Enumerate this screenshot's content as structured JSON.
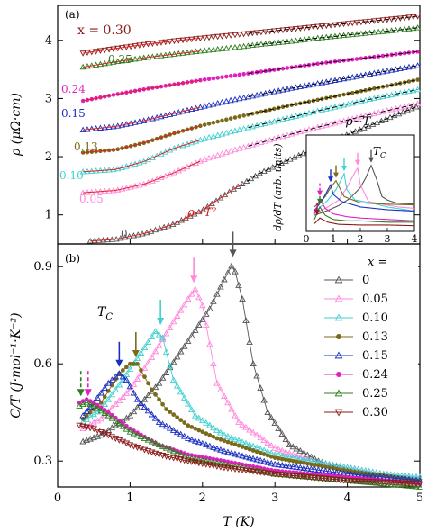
{
  "chart_data": [
    {
      "panel_label": "(a)",
      "type": "scatter",
      "ylabel": "ρ (μΩ·cm)",
      "xlabel": "T (K)",
      "xlim": [
        0,
        5
      ],
      "ylim": [
        0.5,
        4.6
      ],
      "yticks": [
        "1",
        "2",
        "3",
        "4"
      ],
      "grid": false,
      "series": [
        {
          "name": "0.30",
          "label_text": "x = 0.30",
          "color": "#8b1a1a",
          "marker": "triangle-down",
          "x": [
            0.35,
            0.8,
            1.2,
            1.6,
            2.0,
            2.4,
            2.8,
            3.2,
            3.6,
            4.0,
            4.4,
            4.8,
            5.0
          ],
          "y": [
            3.78,
            3.86,
            3.93,
            3.99,
            4.04,
            4.09,
            4.14,
            4.19,
            4.24,
            4.29,
            4.34,
            4.39,
            4.42
          ]
        },
        {
          "name": "0.25",
          "label_text": "0.25",
          "color": "#2e7d1e",
          "marker": "triangle-up",
          "x": [
            0.35,
            0.8,
            1.2,
            1.6,
            2.0,
            2.4,
            2.8,
            3.2,
            3.6,
            4.0,
            4.4,
            4.8,
            5.0
          ],
          "y": [
            3.54,
            3.63,
            3.7,
            3.76,
            3.82,
            3.87,
            3.93,
            3.98,
            4.04,
            4.09,
            4.14,
            4.19,
            4.22
          ]
        },
        {
          "name": "0.24",
          "label_text": "0.24",
          "color": "#e020c0",
          "marker": "circle-filled",
          "x": [
            0.35,
            0.8,
            1.2,
            1.6,
            2.0,
            2.4,
            2.8,
            3.2,
            3.6,
            4.0,
            4.4,
            4.8,
            5.0
          ],
          "y": [
            2.96,
            3.07,
            3.16,
            3.24,
            3.32,
            3.39,
            3.46,
            3.53,
            3.6,
            3.66,
            3.72,
            3.78,
            3.81
          ]
        },
        {
          "name": "0.15",
          "label_text": "0.15",
          "color": "#1a2fbf",
          "marker": "triangle-up",
          "x": [
            0.35,
            0.8,
            1.2,
            1.6,
            2.0,
            2.4,
            2.8,
            3.2,
            3.6,
            4.0,
            4.4,
            4.8,
            5.0
          ],
          "y": [
            2.46,
            2.52,
            2.62,
            2.74,
            2.86,
            2.97,
            3.07,
            3.17,
            3.26,
            3.35,
            3.44,
            3.53,
            3.57
          ]
        },
        {
          "name": "0.13",
          "label_text": "0.13",
          "color": "#7a6a1a",
          "marker": "circle-filled",
          "x": [
            0.35,
            0.8,
            1.2,
            1.6,
            2.0,
            2.4,
            2.8,
            3.2,
            3.6,
            4.0,
            4.4,
            4.8,
            5.0
          ],
          "y": [
            2.07,
            2.12,
            2.24,
            2.4,
            2.54,
            2.66,
            2.77,
            2.88,
            2.98,
            3.08,
            3.18,
            3.28,
            3.33
          ]
        },
        {
          "name": "0.10",
          "label_text": "0.10",
          "color": "#40d0d0",
          "marker": "triangle-up",
          "x": [
            0.35,
            0.8,
            1.2,
            1.6,
            2.0,
            2.4,
            2.8,
            3.2,
            3.6,
            4.0,
            4.4,
            4.8,
            5.0
          ],
          "y": [
            1.74,
            1.78,
            1.92,
            2.14,
            2.3,
            2.43,
            2.55,
            2.67,
            2.79,
            2.9,
            3.01,
            3.11,
            3.16
          ]
        },
        {
          "name": "0.05",
          "label_text": "0.05",
          "color": "#ff88dd",
          "marker": "triangle-up",
          "x": [
            0.35,
            0.8,
            1.2,
            1.6,
            2.0,
            2.4,
            2.8,
            3.2,
            3.6,
            4.0,
            4.4,
            4.8,
            5.0
          ],
          "y": [
            1.38,
            1.42,
            1.53,
            1.72,
            1.94,
            2.1,
            2.24,
            2.38,
            2.51,
            2.63,
            2.75,
            2.86,
            2.92
          ]
        },
        {
          "name": "0",
          "label_text": "0",
          "color": "#555555",
          "marker": "triangle-up",
          "x": [
            0.45,
            0.8,
            1.2,
            1.6,
            2.0,
            2.4,
            2.8,
            3.2,
            3.6,
            4.0,
            4.4,
            4.8,
            5.0
          ],
          "y": [
            0.55,
            0.58,
            0.68,
            0.84,
            1.08,
            1.42,
            1.72,
            1.95,
            2.17,
            2.38,
            2.58,
            2.78,
            2.88
          ]
        }
      ],
      "annotations": {
        "rho_T2": "ρ∼T²",
        "rho_T": "ρ∼T",
        "fit_colors": {
          "T2_fit": "#e02020",
          "T_fit": "#000000"
        }
      },
      "inset": {
        "xlabel": "",
        "ylabel": "dρ/dT (arb. units)",
        "xlim": [
          0,
          4
        ],
        "xticks": [
          "0",
          "1",
          "2",
          "3",
          "4"
        ],
        "label": "T_C",
        "arrows": [
          {
            "series": "0.30",
            "x": 0.4,
            "dashed": true,
            "color": "#8b1a1a"
          },
          {
            "series": "0.25",
            "x": 0.5,
            "dashed": true,
            "color": "#2e7d1e"
          },
          {
            "series": "0.24",
            "x": 0.5,
            "dashed": true,
            "color": "#e020c0"
          },
          {
            "series": "0.15",
            "x": 0.9,
            "dashed": false,
            "color": "#1a2fbf"
          },
          {
            "series": "0.13",
            "x": 1.1,
            "dashed": false,
            "color": "#7a6a1a"
          },
          {
            "series": "0.10",
            "x": 1.4,
            "dashed": false,
            "color": "#40d0d0"
          },
          {
            "series": "0.05",
            "x": 1.9,
            "dashed": false,
            "color": "#ff88dd"
          },
          {
            "series": "0",
            "x": 2.4,
            "dashed": false,
            "color": "#555555"
          }
        ],
        "curves": [
          {
            "series": "0",
            "x": [
              0.3,
              0.8,
              1.2,
              1.6,
              2.0,
              2.2,
              2.4,
              2.6,
              2.8,
              3.0,
              3.3,
              3.6,
              4.0
            ],
            "y": [
              0.18,
              0.25,
              0.32,
              0.42,
              0.58,
              0.72,
              0.9,
              0.7,
              0.45,
              0.4,
              0.36,
              0.35,
              0.34
            ]
          },
          {
            "series": "0.05",
            "x": [
              0.3,
              0.8,
              1.2,
              1.5,
              1.8,
              1.9,
              2.0,
              2.3,
              2.8,
              3.4,
              4.0
            ],
            "y": [
              0.2,
              0.3,
              0.4,
              0.58,
              0.8,
              0.86,
              0.62,
              0.38,
              0.34,
              0.3,
              0.28
            ]
          },
          {
            "series": "0.10",
            "x": [
              0.3,
              0.8,
              1.1,
              1.3,
              1.4,
              1.5,
              1.8,
              2.4,
              3.0,
              4.0
            ],
            "y": [
              0.22,
              0.4,
              0.55,
              0.7,
              0.78,
              0.55,
              0.4,
              0.36,
              0.3,
              0.24
            ]
          },
          {
            "series": "0.13",
            "x": [
              0.3,
              0.7,
              0.9,
              1.1,
              1.2,
              1.4,
              2.0,
              3.0,
              4.0
            ],
            "y": [
              0.3,
              0.45,
              0.58,
              0.68,
              0.6,
              0.45,
              0.36,
              0.34,
              0.33
            ]
          },
          {
            "series": "0.15",
            "x": [
              0.3,
              0.6,
              0.8,
              0.9,
              1.0,
              1.3,
              2.0,
              3.0,
              4.0
            ],
            "y": [
              0.25,
              0.4,
              0.55,
              0.62,
              0.48,
              0.38,
              0.3,
              0.26,
              0.24
            ]
          },
          {
            "series": "0.24",
            "x": [
              0.3,
              0.5,
              0.7,
              1.0,
              1.5,
              2.0,
              3.0,
              4.0
            ],
            "y": [
              0.2,
              0.42,
              0.28,
              0.2,
              0.16,
              0.14,
              0.12,
              0.1
            ]
          },
          {
            "series": "0.25",
            "x": [
              0.3,
              0.5,
              0.7,
              1.0,
              1.5,
              2.0,
              3.0,
              4.0
            ],
            "y": [
              0.12,
              0.3,
              0.18,
              0.12,
              0.1,
              0.1,
              0.08,
              0.08
            ]
          },
          {
            "series": "0.30",
            "x": [
              0.3,
              0.5,
              0.8,
              1.2,
              2.0,
              3.0,
              4.0
            ],
            "y": [
              0.06,
              0.14,
              0.08,
              0.05,
              0.04,
              0.04,
              0.03
            ]
          }
        ]
      }
    },
    {
      "panel_label": "(b)",
      "type": "scatter",
      "xlabel": "T (K)",
      "ylabel": "C/T (J·mol⁻¹·K⁻²)",
      "xlim": [
        0,
        5
      ],
      "ylim": [
        0.22,
        0.97
      ],
      "xticks": [
        "0",
        "1",
        "2",
        "3",
        "4",
        "5"
      ],
      "yticks": [
        "0.3",
        "0.6",
        "0.9"
      ],
      "grid": false,
      "label": "T_C",
      "legend": {
        "title": "x =",
        "placement": "right"
      },
      "series": [
        {
          "name": "0",
          "color": "#555555",
          "marker": "triangle-up",
          "x": [
            0.35,
            0.6,
            1.0,
            1.4,
            1.8,
            2.1,
            2.3,
            2.42,
            2.55,
            2.7,
            2.9,
            3.2,
            3.6,
            4.0,
            4.5,
            5.0
          ],
          "y": [
            0.36,
            0.38,
            0.44,
            0.54,
            0.67,
            0.77,
            0.86,
            0.91,
            0.8,
            0.6,
            0.45,
            0.35,
            0.3,
            0.27,
            0.25,
            0.24
          ]
        },
        {
          "name": "0.05",
          "color": "#ff88dd",
          "marker": "triangle-up",
          "x": [
            0.35,
            0.6,
            1.0,
            1.3,
            1.6,
            1.8,
            1.9,
            2.0,
            2.2,
            2.5,
            3.0,
            3.5,
            4.0,
            4.5,
            5.0
          ],
          "y": [
            0.4,
            0.43,
            0.52,
            0.62,
            0.73,
            0.8,
            0.83,
            0.78,
            0.54,
            0.42,
            0.34,
            0.3,
            0.28,
            0.26,
            0.25
          ]
        },
        {
          "name": "0.10",
          "color": "#40d0d0",
          "marker": "triangle-up",
          "x": [
            0.35,
            0.6,
            0.9,
            1.2,
            1.35,
            1.45,
            1.6,
            1.9,
            2.3,
            3.0,
            3.5,
            4.0,
            4.5,
            5.0
          ],
          "y": [
            0.42,
            0.46,
            0.55,
            0.65,
            0.7,
            0.68,
            0.55,
            0.44,
            0.38,
            0.32,
            0.3,
            0.28,
            0.26,
            0.25
          ]
        },
        {
          "name": "0.13",
          "color": "#7a6a1a",
          "marker": "circle-filled",
          "x": [
            0.35,
            0.6,
            0.85,
            1.0,
            1.1,
            1.2,
            1.3,
            1.5,
            1.8,
            2.2,
            3.0,
            4.0,
            5.0
          ],
          "y": [
            0.43,
            0.48,
            0.57,
            0.6,
            0.6,
            0.56,
            0.52,
            0.46,
            0.41,
            0.37,
            0.31,
            0.27,
            0.24
          ]
        },
        {
          "name": "0.15",
          "color": "#1a2fbf",
          "marker": "triangle-up",
          "x": [
            0.35,
            0.5,
            0.7,
            0.85,
            0.95,
            1.1,
            1.4,
            1.8,
            2.3,
            3.0,
            4.0,
            5.0
          ],
          "y": [
            0.44,
            0.48,
            0.54,
            0.57,
            0.55,
            0.49,
            0.42,
            0.37,
            0.33,
            0.29,
            0.26,
            0.24
          ]
        },
        {
          "name": "0.24",
          "color": "#e020c0",
          "marker": "circle-filled",
          "x": [
            0.3,
            0.4,
            0.5,
            0.7,
            1.0,
            1.4,
            1.8,
            2.3,
            3.0,
            4.0,
            5.0
          ],
          "y": [
            0.48,
            0.49,
            0.48,
            0.45,
            0.4,
            0.35,
            0.32,
            0.3,
            0.27,
            0.25,
            0.23
          ]
        },
        {
          "name": "0.25",
          "color": "#2e7d1e",
          "marker": "triangle-up",
          "x": [
            0.3,
            0.4,
            0.5,
            0.7,
            1.0,
            1.4,
            1.8,
            2.3,
            3.0,
            4.0,
            5.0
          ],
          "y": [
            0.47,
            0.48,
            0.47,
            0.44,
            0.39,
            0.35,
            0.31,
            0.29,
            0.26,
            0.24,
            0.22
          ]
        },
        {
          "name": "0.30",
          "color": "#8b1a1a",
          "marker": "triangle-down",
          "x": [
            0.3,
            0.5,
            0.7,
            1.0,
            1.4,
            1.8,
            2.3,
            3.0,
            4.0,
            5.0
          ],
          "y": [
            0.41,
            0.4,
            0.38,
            0.35,
            0.32,
            0.3,
            0.28,
            0.26,
            0.24,
            0.23
          ]
        }
      ],
      "arrows": [
        {
          "series": "0.25",
          "x": 0.32,
          "y": 0.5,
          "dashed": true,
          "color": "#2e7d1e"
        },
        {
          "series": "0.24",
          "x": 0.42,
          "y": 0.5,
          "dashed": true,
          "color": "#e020c0"
        },
        {
          "series": "0.15",
          "x": 0.85,
          "y": 0.59,
          "dashed": false,
          "color": "#1a2fbf"
        },
        {
          "series": "0.13",
          "x": 1.08,
          "y": 0.62,
          "dashed": false,
          "color": "#7a6a1a"
        },
        {
          "series": "0.10",
          "x": 1.42,
          "y": 0.72,
          "dashed": false,
          "color": "#40d0d0"
        },
        {
          "series": "0.05",
          "x": 1.88,
          "y": 0.85,
          "dashed": false,
          "color": "#ff88dd"
        },
        {
          "series": "0",
          "x": 2.42,
          "y": 0.93,
          "dashed": false,
          "color": "#555555"
        }
      ]
    }
  ]
}
